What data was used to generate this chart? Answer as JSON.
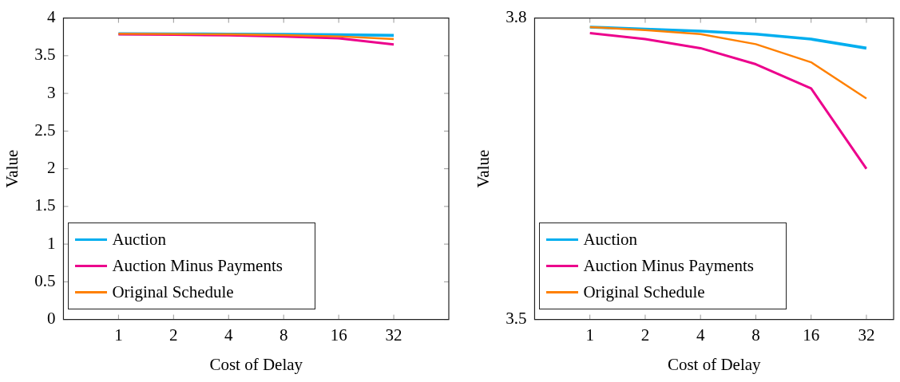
{
  "chart_data": [
    {
      "type": "line",
      "xlabel": "Cost of Delay",
      "ylabel": "Value",
      "x": [
        1,
        2,
        4,
        8,
        16,
        32
      ],
      "log": "x",
      "xlim": [
        0.5,
        64
      ],
      "xticks": [
        1,
        2,
        4,
        8,
        16,
        32
      ],
      "ylim": [
        0,
        4
      ],
      "yticks": [
        0,
        0.5,
        1,
        1.5,
        2,
        2.5,
        3,
        3.5,
        4
      ],
      "legend": "bottom left",
      "marker": "none",
      "series": [
        {
          "name": "Auction",
          "color": "#00aeef",
          "values": [
            3.791,
            3.789,
            3.787,
            3.784,
            3.779,
            3.77
          ]
        },
        {
          "name": "Auction Minus Payments",
          "color": "#ec008c",
          "values": [
            3.785,
            3.779,
            3.77,
            3.754,
            3.73,
            3.65
          ]
        },
        {
          "name": "Original Schedule",
          "color": "#ff8000",
          "values": [
            3.791,
            3.788,
            3.784,
            3.774,
            3.756,
            3.72
          ]
        }
      ]
    },
    {
      "type": "line",
      "xlabel": "Cost of Delay",
      "ylabel": "Value",
      "x": [
        1,
        2,
        4,
        8,
        16,
        32
      ],
      "log": "x",
      "xlim": [
        0.5,
        45
      ],
      "xticks": [
        1,
        2,
        4,
        8,
        16,
        32
      ],
      "ylim": [
        3.5,
        3.8
      ],
      "yticks": [
        3.5,
        3.8
      ],
      "legend": "bottom left",
      "marker": "none",
      "series": [
        {
          "name": "Auction",
          "color": "#00aeef",
          "values": [
            3.791,
            3.789,
            3.787,
            3.784,
            3.779,
            3.77
          ]
        },
        {
          "name": "Auction Minus Payments",
          "color": "#ec008c",
          "values": [
            3.785,
            3.779,
            3.77,
            3.754,
            3.73,
            3.65
          ]
        },
        {
          "name": "Original Schedule",
          "color": "#ff8000",
          "values": [
            3.791,
            3.788,
            3.784,
            3.774,
            3.756,
            3.72
          ]
        }
      ]
    }
  ]
}
